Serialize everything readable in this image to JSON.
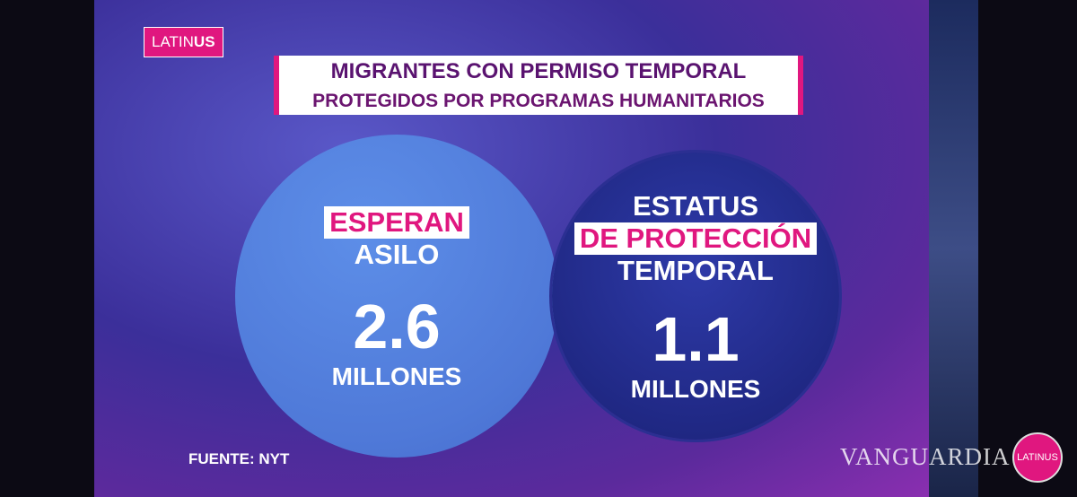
{
  "logo": {
    "prefix": "LATIN",
    "suffix": "US"
  },
  "title": {
    "line1": "MIGRANTES CON PERMISO TEMPORAL",
    "line2": "PROTEGIDOS POR PROGRAMAS HUMANITARIOS"
  },
  "items": [
    {
      "label_highlight": "ESPERAN",
      "label_rest": "ASILO",
      "value": "2.6",
      "unit": "MILLONES"
    },
    {
      "label_top": "ESTATUS",
      "label_highlight": "DE PROTECCIÓN",
      "label_rest": "TEMPORAL",
      "value": "1.1",
      "unit": "MILLONES"
    }
  ],
  "source": "FUENTE: NYT",
  "watermark": {
    "text": "VANGUARDIA",
    "badge": "LATINUS"
  }
}
